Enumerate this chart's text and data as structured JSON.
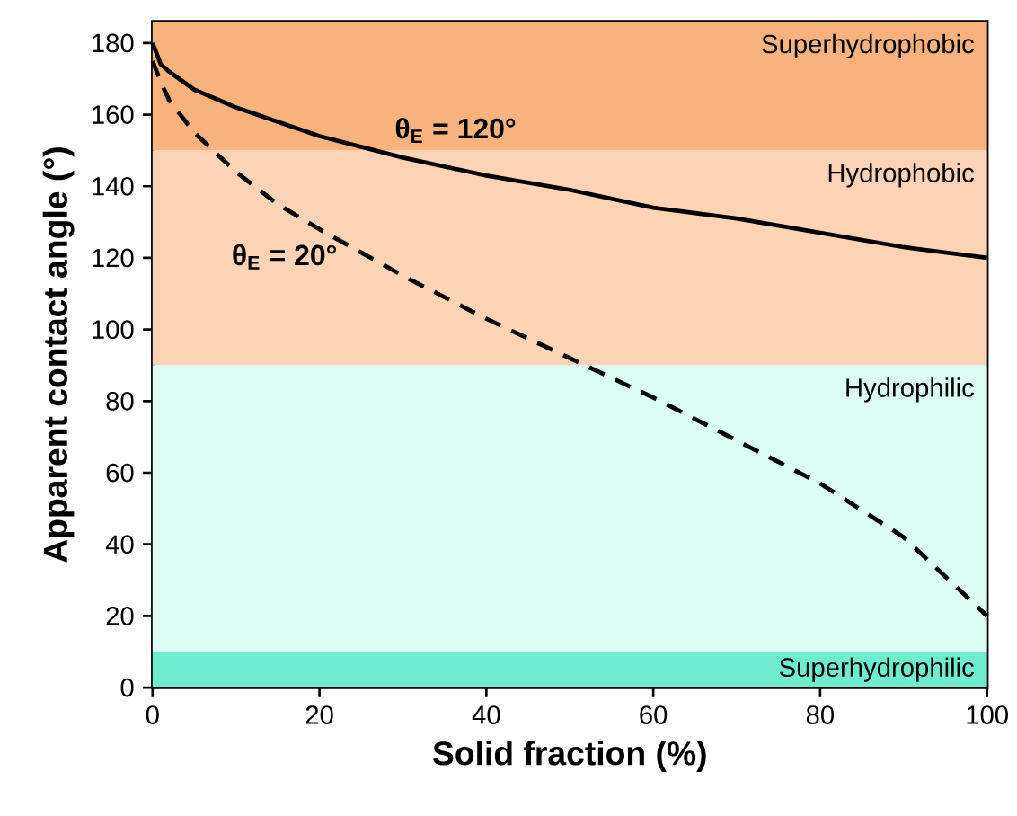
{
  "chart_data": {
    "type": "line",
    "xlabel": "Solid fraction (%)",
    "ylabel": "Apparent contact angle (°)",
    "xlim": [
      0,
      100
    ],
    "ylim": [
      0,
      186
    ],
    "xticks": [
      0,
      20,
      40,
      60,
      80,
      100
    ],
    "yticks": [
      0,
      20,
      40,
      60,
      80,
      100,
      120,
      140,
      160,
      180
    ],
    "grid": false,
    "marker": "none",
    "series": [
      {
        "name": "θ$_{E}$ = 120°",
        "color": "#000000",
        "line_style": "solid",
        "x": [
          0,
          1,
          2,
          5,
          10,
          15,
          20,
          30,
          40,
          50,
          60,
          70,
          80,
          90,
          100
        ],
        "values": [
          180,
          174,
          172,
          167,
          162,
          158,
          154,
          148,
          143,
          139,
          134,
          131,
          127,
          123,
          120
        ]
      },
      {
        "name": "θ$_{E}$ = 20°",
        "color": "#000000",
        "line_style": "dashed",
        "x": [
          0,
          1,
          2,
          5,
          10,
          15,
          20,
          30,
          40,
          50,
          60,
          70,
          80,
          90,
          100
        ],
        "values": [
          175,
          169,
          164,
          155,
          144,
          135,
          128,
          115,
          103,
          92,
          81,
          69,
          57,
          42,
          20
        ]
      }
    ],
    "bands": [
      {
        "axis": "y",
        "from": 150,
        "to": 186,
        "label": "Superhydrophobic",
        "color": "#f8b27c"
      },
      {
        "axis": "y",
        "from": 90,
        "to": 150,
        "label": "Hydrophobic",
        "color": "#fdd3b6"
      },
      {
        "axis": "y",
        "from": 10,
        "to": 90,
        "label": "Hydrophilic",
        "color": "#dcfdf3"
      },
      {
        "axis": "y",
        "from": 0,
        "to": 10,
        "label": "Superhydrophilic",
        "color": "#6eecd0"
      }
    ]
  }
}
